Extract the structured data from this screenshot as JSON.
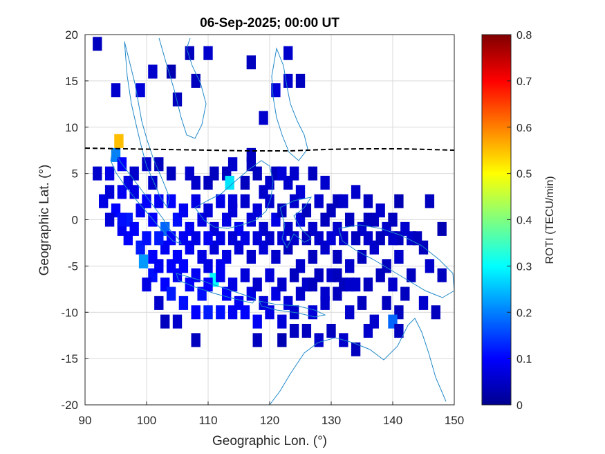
{
  "chart_data": {
    "type": "heatmap",
    "title": "06-Sep-2025; 00:00 UT",
    "xlabel": "Geographic Lon. (°)",
    "ylabel": "Geographic Lat. (°)",
    "xlim": [
      90,
      150
    ],
    "ylim": [
      -20,
      20
    ],
    "xticks": [
      "90",
      "100",
      "110",
      "120",
      "130",
      "140",
      "150"
    ],
    "yticks": [
      "-20",
      "-15",
      "-10",
      "-5",
      "0",
      "5",
      "10",
      "15",
      "20"
    ],
    "grid": true,
    "colorbar": {
      "label": "ROTI (TECU/min)",
      "range": [
        0,
        0.8
      ],
      "ticks": [
        "0",
        "0.1",
        "0.2",
        "0.3",
        "0.4",
        "0.5",
        "0.6",
        "0.7",
        "0.8"
      ],
      "colormap": "jet"
    },
    "cell_size": [
      1.5,
      1.5
    ],
    "cells": [
      [
        92,
        19,
        0.05
      ],
      [
        95,
        14,
        0.06
      ],
      [
        99,
        14,
        0.07
      ],
      [
        107,
        18,
        0.05
      ],
      [
        110,
        18,
        0.06
      ],
      [
        105,
        13,
        0.05
      ],
      [
        108,
        15,
        0.05
      ],
      [
        104,
        16,
        0.04
      ],
      [
        101,
        16,
        0.06
      ],
      [
        117,
        17,
        0.05
      ],
      [
        123,
        18,
        0.06
      ],
      [
        121,
        14,
        0.07
      ],
      [
        123,
        15,
        0.06
      ],
      [
        125,
        15,
        0.05
      ],
      [
        119,
        11,
        0.06
      ],
      [
        113,
        5,
        0.05
      ],
      [
        114,
        6,
        0.06
      ],
      [
        117,
        7,
        0.05
      ],
      [
        95.5,
        8.5,
        0.55
      ],
      [
        95,
        7,
        0.2
      ],
      [
        96,
        6,
        0.1
      ],
      [
        94,
        5,
        0.08
      ],
      [
        92,
        5,
        0.06
      ],
      [
        97,
        4,
        0.08
      ],
      [
        101,
        4,
        0.06
      ],
      [
        104,
        5,
        0.05
      ],
      [
        107,
        5,
        0.06
      ],
      [
        111,
        5,
        0.05
      ],
      [
        113.5,
        4,
        0.28
      ],
      [
        116,
        4,
        0.05
      ],
      [
        119,
        3,
        0.06
      ],
      [
        121,
        5,
        0.05
      ],
      [
        123,
        4,
        0.06
      ],
      [
        125,
        3,
        0.07
      ],
      [
        127,
        5,
        0.05
      ],
      [
        129,
        4,
        0.06
      ],
      [
        131,
        2,
        0.05
      ],
      [
        134,
        3,
        0.06
      ],
      [
        136,
        2,
        0.05
      ],
      [
        141,
        2,
        0.04
      ],
      [
        146,
        2,
        0.05
      ],
      [
        93,
        2,
        0.08
      ],
      [
        95,
        1,
        0.1
      ],
      [
        97,
        0,
        0.12
      ],
      [
        99,
        1,
        0.09
      ],
      [
        101,
        0,
        0.1
      ],
      [
        103,
        -1,
        0.18
      ],
      [
        105,
        0,
        0.11
      ],
      [
        107,
        -1,
        0.09
      ],
      [
        109,
        0,
        0.08
      ],
      [
        111,
        -1,
        0.07
      ],
      [
        113,
        0,
        0.08
      ],
      [
        115,
        -1,
        0.09
      ],
      [
        117,
        0,
        0.07
      ],
      [
        119,
        -1,
        0.06
      ],
      [
        121,
        0,
        0.08
      ],
      [
        123,
        -1,
        0.06
      ],
      [
        125,
        0,
        0.07
      ],
      [
        127,
        -1,
        0.06
      ],
      [
        129,
        0,
        0.05
      ],
      [
        131,
        -1,
        0.06
      ],
      [
        133,
        0,
        0.05
      ],
      [
        135,
        -1,
        0.06
      ],
      [
        137,
        0,
        0.05
      ],
      [
        139,
        -1,
        0.06
      ],
      [
        141,
        -2,
        0.05
      ],
      [
        143,
        -2,
        0.06
      ],
      [
        145,
        -3,
        0.05
      ],
      [
        148,
        -1,
        0.04
      ],
      [
        97,
        -2,
        0.1
      ],
      [
        99,
        -3,
        0.12
      ],
      [
        101,
        -4,
        0.1
      ],
      [
        103,
        -3,
        0.09
      ],
      [
        105,
        -4,
        0.1
      ],
      [
        107,
        -3,
        0.09
      ],
      [
        109,
        -4,
        0.08
      ],
      [
        111,
        -3,
        0.07
      ],
      [
        113,
        -4,
        0.08
      ],
      [
        115,
        -3,
        0.07
      ],
      [
        117,
        -4,
        0.06
      ],
      [
        119,
        -3,
        0.07
      ],
      [
        121,
        -4,
        0.06
      ],
      [
        123,
        -3,
        0.05
      ],
      [
        125,
        -5,
        0.06
      ],
      [
        127,
        -4,
        0.05
      ],
      [
        129,
        -3,
        0.06
      ],
      [
        131,
        -4,
        0.05
      ],
      [
        133,
        -5,
        0.06
      ],
      [
        135,
        -4,
        0.05
      ],
      [
        137,
        -3,
        0.06
      ],
      [
        139,
        -5,
        0.05
      ],
      [
        141,
        -4,
        0.06
      ],
      [
        143,
        -6,
        0.05
      ],
      [
        146,
        -5,
        0.06
      ],
      [
        148,
        -6,
        0.05
      ],
      [
        99.5,
        -4.5,
        0.22
      ],
      [
        101,
        -6,
        0.11
      ],
      [
        103,
        -7,
        0.1
      ],
      [
        105,
        -6,
        0.09
      ],
      [
        107,
        -7,
        0.1
      ],
      [
        109,
        -8,
        0.11
      ],
      [
        111,
        -6.5,
        0.3
      ],
      [
        113,
        -8,
        0.1
      ],
      [
        115,
        -9,
        0.09
      ],
      [
        117,
        -8,
        0.08
      ],
      [
        119,
        -9,
        0.07
      ],
      [
        121,
        -8,
        0.08
      ],
      [
        123,
        -9,
        0.07
      ],
      [
        125,
        -8,
        0.06
      ],
      [
        127,
        -10,
        0.07
      ],
      [
        129,
        -9,
        0.06
      ],
      [
        131,
        -8,
        0.05
      ],
      [
        133,
        -10,
        0.06
      ],
      [
        135,
        -9,
        0.05
      ],
      [
        137,
        -11,
        0.06
      ],
      [
        139,
        -9,
        0.05
      ],
      [
        141,
        -10,
        0.05
      ],
      [
        145,
        -9,
        0.06
      ],
      [
        147,
        -10,
        0.05
      ],
      [
        104,
        -8,
        0.12
      ],
      [
        106,
        -9,
        0.11
      ],
      [
        108,
        -10,
        0.1
      ],
      [
        110,
        -10,
        0.12
      ],
      [
        112,
        -10,
        0.11
      ],
      [
        114,
        -10,
        0.09
      ],
      [
        116,
        -10,
        0.1
      ],
      [
        118,
        -11,
        0.09
      ],
      [
        120,
        -10,
        0.08
      ],
      [
        122,
        -11,
        0.07
      ],
      [
        124,
        -10,
        0.06
      ],
      [
        126,
        -12,
        0.05
      ],
      [
        128,
        -13,
        0.06
      ],
      [
        130,
        -12,
        0.05
      ],
      [
        132,
        -13,
        0.06
      ],
      [
        134,
        -14,
        0.05
      ],
      [
        136,
        -12,
        0.06
      ],
      [
        140,
        -11,
        0.18
      ],
      [
        141,
        -12,
        0.05
      ],
      [
        103,
        -11,
        0.05
      ],
      [
        105,
        -11,
        0.06
      ],
      [
        108,
        -13,
        0.05
      ],
      [
        98,
        3,
        0.08
      ],
      [
        100,
        2,
        0.1
      ],
      [
        102,
        2,
        0.09
      ],
      [
        104,
        2,
        0.1
      ],
      [
        106,
        1,
        0.09
      ],
      [
        108,
        2,
        0.08
      ],
      [
        110,
        1,
        0.07
      ],
      [
        112,
        2,
        0.08
      ],
      [
        114,
        1,
        0.07
      ],
      [
        116,
        2,
        0.06
      ],
      [
        118,
        1,
        0.07
      ],
      [
        120,
        2,
        0.06
      ],
      [
        122,
        1,
        0.05
      ],
      [
        124,
        2,
        0.06
      ],
      [
        126,
        1,
        0.05
      ],
      [
        128,
        2,
        0.06
      ],
      [
        130,
        1,
        0.05
      ],
      [
        132,
        2,
        0.06
      ],
      [
        136,
        0,
        0.05
      ],
      [
        138,
        1,
        0.06
      ],
      [
        140,
        0,
        0.05
      ],
      [
        142,
        -1,
        0.06
      ],
      [
        144,
        -2,
        0.05
      ],
      [
        96,
        -1,
        0.09
      ],
      [
        98,
        -1,
        0.1
      ],
      [
        100,
        -2,
        0.11
      ],
      [
        102,
        -2,
        0.12
      ],
      [
        104,
        -2,
        0.1
      ],
      [
        106,
        -2,
        0.09
      ],
      [
        108,
        -2,
        0.08
      ],
      [
        110,
        -2,
        0.09
      ],
      [
        112,
        -2,
        0.08
      ],
      [
        114,
        -2,
        0.07
      ],
      [
        116,
        -2,
        0.08
      ],
      [
        118,
        -2,
        0.07
      ],
      [
        120,
        -2,
        0.06
      ],
      [
        122,
        -2,
        0.07
      ],
      [
        124,
        -2,
        0.06
      ],
      [
        126,
        -2,
        0.05
      ],
      [
        128,
        -2,
        0.06
      ],
      [
        130,
        -2,
        0.07
      ],
      [
        132,
        -2,
        0.06
      ],
      [
        134,
        -2,
        0.05
      ],
      [
        136,
        -2,
        0.06
      ],
      [
        138,
        -2,
        0.05
      ],
      [
        140,
        -2,
        0.06
      ],
      [
        138,
        -6,
        0.05
      ],
      [
        140,
        -7,
        0.06
      ],
      [
        142,
        -8,
        0.05
      ],
      [
        106,
        -5,
        0.1
      ],
      [
        108,
        -6,
        0.09
      ],
      [
        110,
        -7,
        0.1
      ],
      [
        112,
        -6,
        0.09
      ],
      [
        114,
        -7,
        0.08
      ],
      [
        116,
        -6,
        0.07
      ],
      [
        118,
        -7,
        0.06
      ],
      [
        120,
        -6,
        0.07
      ],
      [
        122,
        -7,
        0.06
      ],
      [
        124,
        -6,
        0.05
      ],
      [
        126,
        -7,
        0.06
      ],
      [
        128,
        -6,
        0.05
      ],
      [
        130,
        -6,
        0.06
      ],
      [
        132,
        -7,
        0.05
      ],
      [
        134,
        -7,
        0.06
      ],
      [
        136,
        -7,
        0.05
      ],
      [
        102,
        -5,
        0.09
      ],
      [
        104,
        -5,
        0.1
      ],
      [
        100,
        -7,
        0.08
      ],
      [
        102,
        -9,
        0.06
      ],
      [
        94,
        3,
        0.07
      ],
      [
        96,
        3,
        0.09
      ],
      [
        108,
        4,
        0.06
      ],
      [
        110,
        4,
        0.05
      ],
      [
        118,
        5,
        0.05
      ],
      [
        120,
        4,
        0.06
      ],
      [
        122,
        5,
        0.07
      ],
      [
        124,
        5,
        0.06
      ],
      [
        117,
        6,
        0.05
      ],
      [
        96,
        0,
        0.11
      ],
      [
        94,
        0,
        0.07
      ],
      [
        98,
        5,
        0.06
      ],
      [
        102,
        6,
        0.05
      ],
      [
        100,
        6,
        0.06
      ],
      [
        114,
        2,
        0.07
      ],
      [
        110,
        -5,
        0.08
      ],
      [
        112,
        -5,
        0.09
      ],
      [
        127,
        -7,
        0.05
      ],
      [
        129,
        -8,
        0.06
      ],
      [
        131,
        -6,
        0.05
      ],
      [
        133,
        -7,
        0.06
      ],
      [
        124,
        -12,
        0.05
      ],
      [
        122,
        -13,
        0.04
      ],
      [
        118,
        -13,
        0.05
      ]
    ],
    "coastline_color": "#1f88c8",
    "grid_color": "#d9d9d9"
  }
}
